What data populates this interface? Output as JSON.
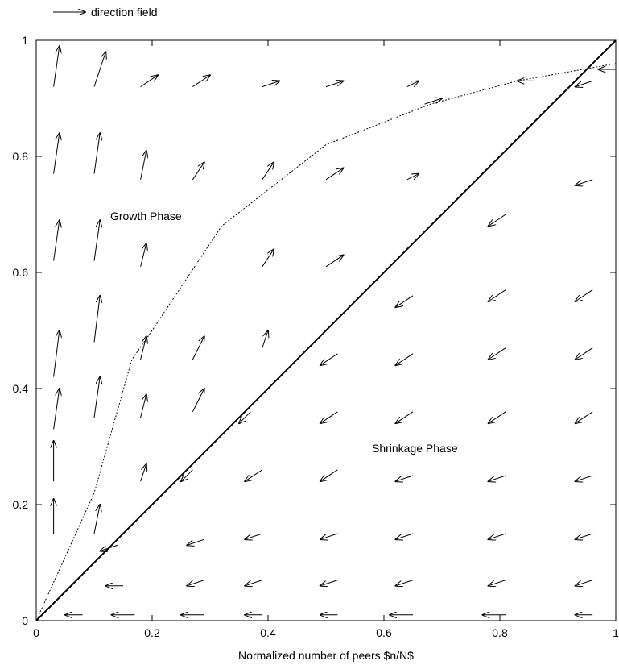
{
  "chart_data": {
    "type": "scatter",
    "title": "",
    "xlabel": "Normalized number of peers $n/N$",
    "ylabel": "",
    "xlim": [
      0,
      1
    ],
    "ylim": [
      0,
      1
    ],
    "x_ticks": [
      "0",
      "0.2",
      "0.4",
      "0.6",
      "0.8",
      "1"
    ],
    "y_ticks": [
      "0",
      "0.2",
      "0.4",
      "0.6",
      "0.8",
      "1"
    ],
    "grid": false,
    "legend": {
      "placement": "top-left",
      "entries": [
        "direction field"
      ]
    },
    "annotations": [
      "Growth Phase",
      "Shrinkage Phase"
    ],
    "series": [
      {
        "name": "direction field",
        "style": "arrows",
        "columns_x": [
          0.03,
          0.1,
          0.19,
          0.28,
          0.39,
          0.51,
          0.64,
          0.78,
          0.94
        ],
        "rows_y": [
          0.01,
          0.06,
          0.14,
          0.17,
          0.27,
          0.37,
          0.46,
          0.56,
          0.64,
          0.77,
          0.93
        ],
        "arrows": [
          [
            0.03,
            0.15,
            0.03,
            0.21
          ],
          [
            0.03,
            0.24,
            0.03,
            0.31
          ],
          [
            0.03,
            0.33,
            0.04,
            0.4
          ],
          [
            0.03,
            0.42,
            0.04,
            0.5
          ],
          [
            0.03,
            0.62,
            0.04,
            0.69
          ],
          [
            0.03,
            0.77,
            0.04,
            0.84
          ],
          [
            0.03,
            0.92,
            0.04,
            0.99
          ],
          [
            0.1,
            0.15,
            0.11,
            0.2
          ],
          [
            0.1,
            0.35,
            0.11,
            0.42
          ],
          [
            0.1,
            0.48,
            0.11,
            0.56
          ],
          [
            0.1,
            0.62,
            0.11,
            0.69
          ],
          [
            0.1,
            0.77,
            0.11,
            0.84
          ],
          [
            0.1,
            0.92,
            0.12,
            0.98
          ],
          [
            0.18,
            0.24,
            0.19,
            0.27
          ],
          [
            0.18,
            0.35,
            0.19,
            0.39
          ],
          [
            0.18,
            0.45,
            0.19,
            0.49
          ],
          [
            0.18,
            0.61,
            0.19,
            0.65
          ],
          [
            0.18,
            0.76,
            0.19,
            0.81
          ],
          [
            0.18,
            0.92,
            0.21,
            0.94
          ],
          [
            0.27,
            0.36,
            0.29,
            0.4
          ],
          [
            0.27,
            0.45,
            0.29,
            0.49
          ],
          [
            0.27,
            0.76,
            0.29,
            0.79
          ],
          [
            0.27,
            0.92,
            0.3,
            0.94
          ],
          [
            0.39,
            0.47,
            0.4,
            0.5
          ],
          [
            0.39,
            0.61,
            0.41,
            0.64
          ],
          [
            0.39,
            0.76,
            0.41,
            0.79
          ],
          [
            0.39,
            0.92,
            0.42,
            0.93
          ],
          [
            0.5,
            0.61,
            0.53,
            0.63
          ],
          [
            0.5,
            0.76,
            0.53,
            0.78
          ],
          [
            0.5,
            0.92,
            0.53,
            0.93
          ],
          [
            0.64,
            0.76,
            0.66,
            0.77
          ],
          [
            0.64,
            0.92,
            0.66,
            0.93
          ],
          [
            0.14,
            0.13,
            0.11,
            0.12
          ],
          [
            0.15,
            0.06,
            0.12,
            0.06
          ],
          [
            0.17,
            0.01,
            0.13,
            0.01
          ],
          [
            0.08,
            0.01,
            0.05,
            0.01
          ],
          [
            0.27,
            0.26,
            0.25,
            0.24
          ],
          [
            0.29,
            0.14,
            0.26,
            0.13
          ],
          [
            0.29,
            0.07,
            0.26,
            0.06
          ],
          [
            0.29,
            0.01,
            0.25,
            0.01
          ],
          [
            0.37,
            0.36,
            0.35,
            0.34
          ],
          [
            0.39,
            0.26,
            0.36,
            0.24
          ],
          [
            0.39,
            0.15,
            0.36,
            0.14
          ],
          [
            0.39,
            0.07,
            0.36,
            0.06
          ],
          [
            0.39,
            0.01,
            0.36,
            0.01
          ],
          [
            0.52,
            0.46,
            0.49,
            0.44
          ],
          [
            0.52,
            0.36,
            0.49,
            0.34
          ],
          [
            0.52,
            0.26,
            0.49,
            0.24
          ],
          [
            0.52,
            0.15,
            0.49,
            0.14
          ],
          [
            0.52,
            0.07,
            0.49,
            0.06
          ],
          [
            0.52,
            0.01,
            0.49,
            0.01
          ],
          [
            0.65,
            0.56,
            0.62,
            0.54
          ],
          [
            0.65,
            0.46,
            0.62,
            0.44
          ],
          [
            0.65,
            0.36,
            0.62,
            0.34
          ],
          [
            0.65,
            0.25,
            0.62,
            0.24
          ],
          [
            0.65,
            0.15,
            0.62,
            0.14
          ],
          [
            0.65,
            0.07,
            0.62,
            0.06
          ],
          [
            0.65,
            0.01,
            0.61,
            0.01
          ],
          [
            0.81,
            0.7,
            0.78,
            0.68
          ],
          [
            0.81,
            0.57,
            0.78,
            0.55
          ],
          [
            0.81,
            0.47,
            0.78,
            0.45
          ],
          [
            0.81,
            0.36,
            0.78,
            0.34
          ],
          [
            0.81,
            0.25,
            0.78,
            0.24
          ],
          [
            0.81,
            0.15,
            0.78,
            0.14
          ],
          [
            0.81,
            0.07,
            0.78,
            0.06
          ],
          [
            0.81,
            0.01,
            0.77,
            0.01
          ],
          [
            0.96,
            0.93,
            0.93,
            0.92
          ],
          [
            0.96,
            0.76,
            0.93,
            0.75
          ],
          [
            0.96,
            0.57,
            0.93,
            0.55
          ],
          [
            0.96,
            0.47,
            0.93,
            0.45
          ],
          [
            0.96,
            0.36,
            0.93,
            0.34
          ],
          [
            0.96,
            0.25,
            0.93,
            0.24
          ],
          [
            0.96,
            0.15,
            0.93,
            0.14
          ],
          [
            0.96,
            0.07,
            0.93,
            0.06
          ],
          [
            0.96,
            0.01,
            0.93,
            0.01
          ],
          [
            0.67,
            0.89,
            0.7,
            0.9
          ],
          [
            1.0,
            0.95,
            0.97,
            0.95
          ],
          [
            0.86,
            0.93,
            0.83,
            0.93
          ]
        ]
      },
      {
        "name": "",
        "style": "dotted",
        "points": [
          [
            0,
            0
          ],
          [
            0.1,
            0.22
          ],
          [
            0.165,
            0.45
          ],
          [
            0.2,
            0.5
          ],
          [
            0.32,
            0.68
          ],
          [
            0.5,
            0.82
          ],
          [
            0.68,
            0.89
          ],
          [
            0.83,
            0.93
          ],
          [
            1.0,
            0.96
          ]
        ]
      },
      {
        "name": "",
        "style": "solid",
        "points": [
          [
            0,
            0
          ],
          [
            1,
            1
          ]
        ]
      }
    ]
  }
}
